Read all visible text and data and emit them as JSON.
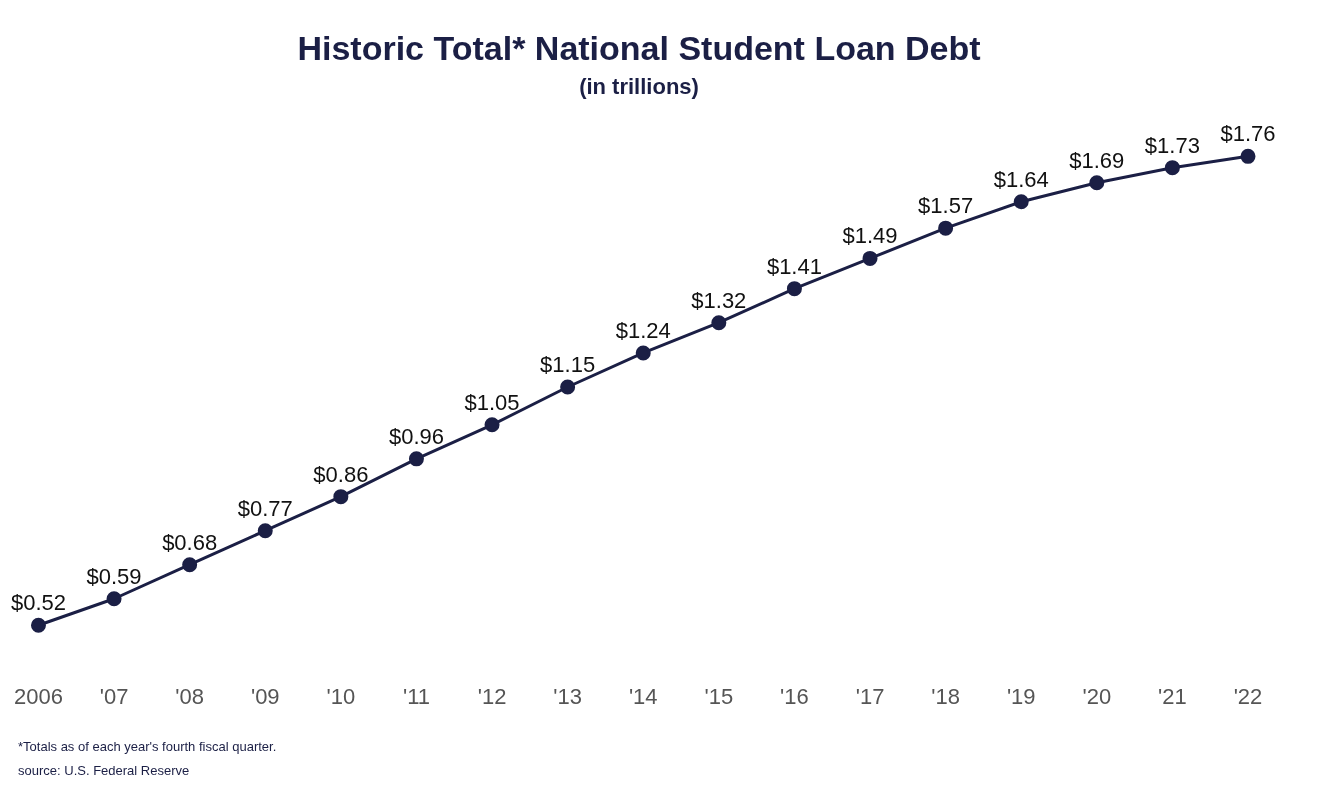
{
  "chart_data": {
    "type": "line",
    "title": "Historic Total* National Student Loan Debt",
    "subtitle": "(in trillions)",
    "categories": [
      "2006",
      "'07",
      "'08",
      "'09",
      "'10",
      "'11",
      "'12",
      "'13",
      "'14",
      "'15",
      "'16",
      "'17",
      "'18",
      "'19",
      "'20",
      "'21",
      "'22"
    ],
    "series": [
      {
        "color": "#1b1f45",
        "values": [
          0.52,
          0.59,
          0.68,
          0.77,
          0.86,
          0.96,
          1.05,
          1.15,
          1.24,
          1.32,
          1.41,
          1.49,
          1.57,
          1.64,
          1.69,
          1.73,
          1.76
        ],
        "value_labels": [
          "$0.52",
          "$0.59",
          "$0.68",
          "$0.77",
          "$0.86",
          "$0.96",
          "$1.05",
          "$1.15",
          "$1.24",
          "$1.32",
          "$1.41",
          "$1.49",
          "$1.57",
          "$1.64",
          "$1.69",
          "$1.73",
          "$1.76"
        ]
      }
    ],
    "marker": "circle",
    "line_style": "solid",
    "grid": false,
    "legend": false,
    "tick_labels": "x",
    "annotations": [
      "*Totals as of each year's fourth fiscal quarter.",
      "source: U.S. Federal Reserve"
    ]
  }
}
